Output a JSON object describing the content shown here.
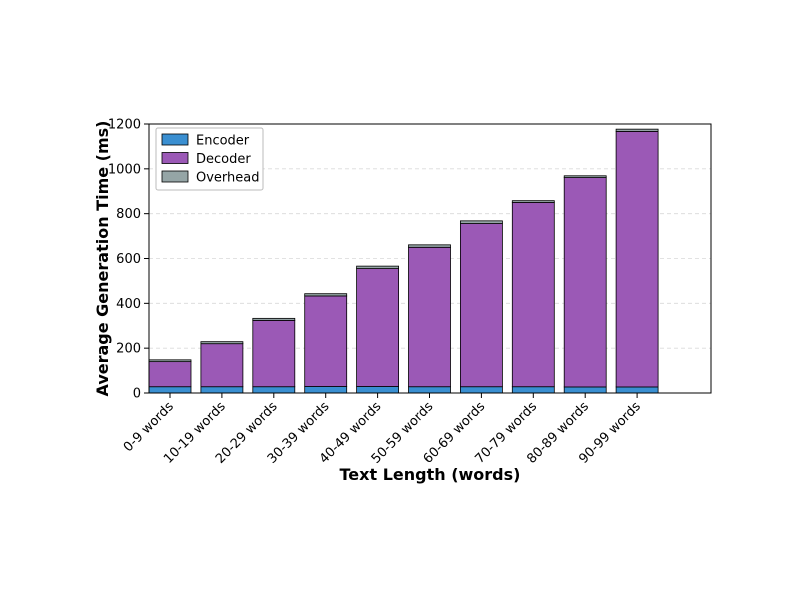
{
  "chart_data": {
    "type": "bar",
    "stacked": true,
    "title": "",
    "xlabel": "Text Length (words)",
    "ylabel": "Average Generation Time (ms)",
    "ylim": [
      0,
      1200
    ],
    "yticks": [
      0,
      200,
      400,
      600,
      800,
      1000,
      1200
    ],
    "grid": "horizontal dashed",
    "legend_position": "top-left",
    "categories": [
      "0-9 words",
      "10-19 words",
      "20-29 words",
      "30-39 words",
      "40-49 words",
      "50-59 words",
      "60-69 words",
      "70-79 words",
      "80-89 words",
      "90-99 words"
    ],
    "series": [
      {
        "name": "Encoder",
        "color": "#3a8fd1",
        "values": [
          28,
          28,
          28,
          29,
          29,
          28,
          28,
          28,
          27,
          27
        ]
      },
      {
        "name": "Decoder",
        "color": "#9b59b6",
        "values": [
          112,
          192,
          296,
          404,
          526,
          622,
          728,
          822,
          934,
          1140
        ]
      },
      {
        "name": "Overhead",
        "color": "#95a5a6",
        "values": [
          8,
          9,
          9,
          10,
          11,
          11,
          12,
          8,
          8,
          10
        ]
      }
    ]
  }
}
